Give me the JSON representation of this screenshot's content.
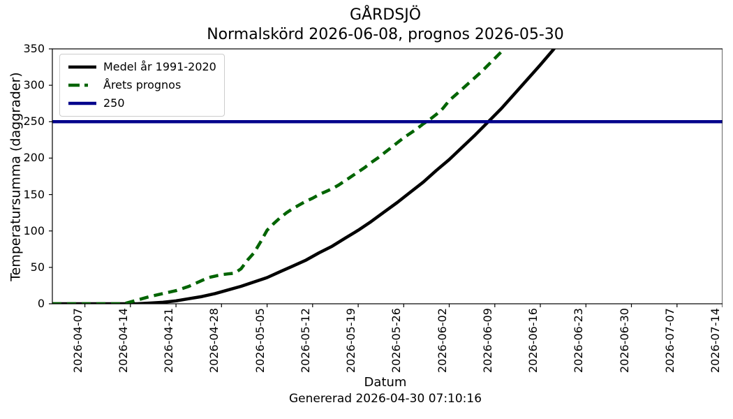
{
  "chart_data": {
    "type": "line",
    "title_line1": "GÅRDSJÖ",
    "title_line2": "Normalskörd 2026-06-08, prognos 2026-05-30",
    "xlabel": "Datum",
    "ylabel": "Temperatursumma (daggrader)",
    "footer": "Genererad 2026-04-30 07:10:16",
    "grid": false,
    "x_range": [
      "2026-04-02",
      "2026-07-14"
    ],
    "ylim": [
      0,
      350
    ],
    "y_ticks": [
      0,
      50,
      100,
      150,
      200,
      250,
      300,
      350
    ],
    "x_ticks": [
      "2026-04-07",
      "2026-04-14",
      "2026-04-21",
      "2026-04-28",
      "2026-05-05",
      "2026-05-12",
      "2026-05-19",
      "2026-05-26",
      "2026-06-02",
      "2026-06-09",
      "2026-06-16",
      "2026-06-23",
      "2026-06-30",
      "2026-07-07",
      "2026-07-14"
    ],
    "legend": {
      "position": "upper left"
    },
    "series": [
      {
        "id": "medel",
        "name": "Medel år 1991-2020",
        "color": "#000000",
        "style": "solid",
        "points": [
          [
            "2026-04-02",
            0
          ],
          [
            "2026-04-08",
            0
          ],
          [
            "2026-04-13",
            0
          ],
          [
            "2026-04-15",
            0
          ],
          [
            "2026-04-17",
            1
          ],
          [
            "2026-04-19",
            2
          ],
          [
            "2026-04-21",
            4
          ],
          [
            "2026-04-23",
            7
          ],
          [
            "2026-04-25",
            10
          ],
          [
            "2026-04-27",
            14
          ],
          [
            "2026-04-29",
            19
          ],
          [
            "2026-05-01",
            24
          ],
          [
            "2026-05-03",
            30
          ],
          [
            "2026-05-05",
            36
          ],
          [
            "2026-05-07",
            44
          ],
          [
            "2026-05-09",
            52
          ],
          [
            "2026-05-11",
            60
          ],
          [
            "2026-05-13",
            70
          ],
          [
            "2026-05-15",
            79
          ],
          [
            "2026-05-17",
            90
          ],
          [
            "2026-05-19",
            101
          ],
          [
            "2026-05-21",
            113
          ],
          [
            "2026-05-23",
            126
          ],
          [
            "2026-05-25",
            139
          ],
          [
            "2026-05-27",
            153
          ],
          [
            "2026-05-29",
            167
          ],
          [
            "2026-05-31",
            183
          ],
          [
            "2026-06-02",
            198
          ],
          [
            "2026-06-04",
            215
          ],
          [
            "2026-06-06",
            232
          ],
          [
            "2026-06-08",
            250
          ],
          [
            "2026-06-10",
            268
          ],
          [
            "2026-06-12",
            288
          ],
          [
            "2026-06-14",
            308
          ],
          [
            "2026-06-16",
            328
          ],
          [
            "2026-06-18",
            349
          ],
          [
            "2026-06-20",
            371
          ]
        ]
      },
      {
        "id": "prognos",
        "name": "Årets prognos",
        "color": "#006400",
        "style": "dashed",
        "points": [
          [
            "2026-04-02",
            0
          ],
          [
            "2026-04-08",
            0
          ],
          [
            "2026-04-13",
            0
          ],
          [
            "2026-04-15",
            5
          ],
          [
            "2026-04-17",
            10
          ],
          [
            "2026-04-19",
            14
          ],
          [
            "2026-04-21",
            18
          ],
          [
            "2026-04-22",
            21
          ],
          [
            "2026-04-23",
            24
          ],
          [
            "2026-04-24",
            28
          ],
          [
            "2026-04-25",
            32
          ],
          [
            "2026-04-26",
            36
          ],
          [
            "2026-04-27",
            38
          ],
          [
            "2026-04-28",
            40
          ],
          [
            "2026-04-29",
            41
          ],
          [
            "2026-04-30",
            42
          ],
          [
            "2026-05-01",
            48
          ],
          [
            "2026-05-02",
            60
          ],
          [
            "2026-05-03",
            70
          ],
          [
            "2026-05-04",
            85
          ],
          [
            "2026-05-05",
            101
          ],
          [
            "2026-05-06",
            110
          ],
          [
            "2026-05-07",
            118
          ],
          [
            "2026-05-08",
            125
          ],
          [
            "2026-05-09",
            131
          ],
          [
            "2026-05-10",
            136
          ],
          [
            "2026-05-11",
            141
          ],
          [
            "2026-05-12",
            145
          ],
          [
            "2026-05-13",
            150
          ],
          [
            "2026-05-14",
            154
          ],
          [
            "2026-05-15",
            158
          ],
          [
            "2026-05-16",
            163
          ],
          [
            "2026-05-17",
            169
          ],
          [
            "2026-05-18",
            175
          ],
          [
            "2026-05-19",
            181
          ],
          [
            "2026-05-20",
            187
          ],
          [
            "2026-05-21",
            194
          ],
          [
            "2026-05-22",
            200
          ],
          [
            "2026-05-23",
            207
          ],
          [
            "2026-05-24",
            214
          ],
          [
            "2026-05-25",
            221
          ],
          [
            "2026-05-26",
            228
          ],
          [
            "2026-05-27",
            234
          ],
          [
            "2026-05-28",
            240
          ],
          [
            "2026-05-29",
            247
          ],
          [
            "2026-05-30",
            253
          ],
          [
            "2026-05-31",
            260
          ],
          [
            "2026-06-01",
            268
          ],
          [
            "2026-06-02",
            279
          ],
          [
            "2026-06-03",
            287
          ],
          [
            "2026-06-04",
            295
          ],
          [
            "2026-06-05",
            303
          ],
          [
            "2026-06-06",
            311
          ],
          [
            "2026-06-07",
            319
          ],
          [
            "2026-06-08",
            328
          ],
          [
            "2026-06-09",
            337
          ],
          [
            "2026-06-10",
            346
          ],
          [
            "2026-06-11",
            356
          ]
        ]
      },
      {
        "id": "threshold",
        "name": "250",
        "color": "#00008b",
        "style": "solid",
        "type": "hline",
        "value": 250
      }
    ]
  }
}
